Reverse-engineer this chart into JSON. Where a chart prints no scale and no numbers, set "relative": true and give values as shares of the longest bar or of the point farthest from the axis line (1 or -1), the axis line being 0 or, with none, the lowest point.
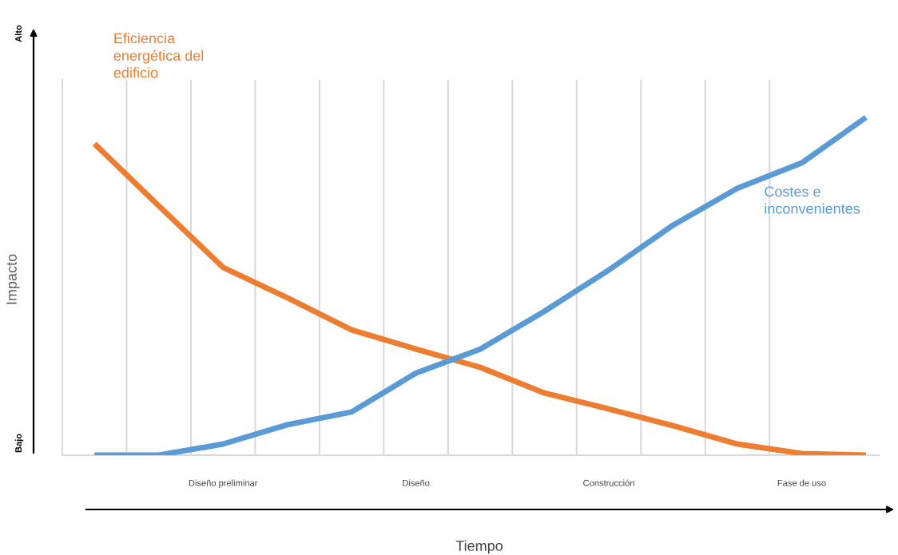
{
  "chart_data": {
    "type": "line",
    "relative": true,
    "xlabel": "Tiempo",
    "ylabel": "Impacto",
    "grid": "x",
    "legend": false,
    "marker": "none",
    "line_style": "solid",
    "annotations": [
      "Alto",
      "Bajo"
    ],
    "categories": [
      null,
      null,
      "Diseño preliminar",
      null,
      null,
      "Diseño",
      null,
      null,
      "Construcción",
      null,
      null,
      "Fase de uso",
      null
    ],
    "series": [
      {
        "name": "Eficiencia energética del edificio",
        "color": "#ed7d31",
        "values": [
          0.922,
          0.738,
          0.556,
          0.466,
          0.371,
          0.314,
          0.26,
          0.184,
          0.137,
          0.087,
          0.033,
          0.005,
          0
        ]
      },
      {
        "name": "Costes e inconvenientes",
        "color": "#5b9bd5",
        "values": [
          0,
          0,
          0.033,
          0.09,
          0.128,
          0.243,
          0.314,
          0.426,
          0.548,
          0.681,
          0.79,
          0.865,
          1
        ]
      }
    ]
  }
}
